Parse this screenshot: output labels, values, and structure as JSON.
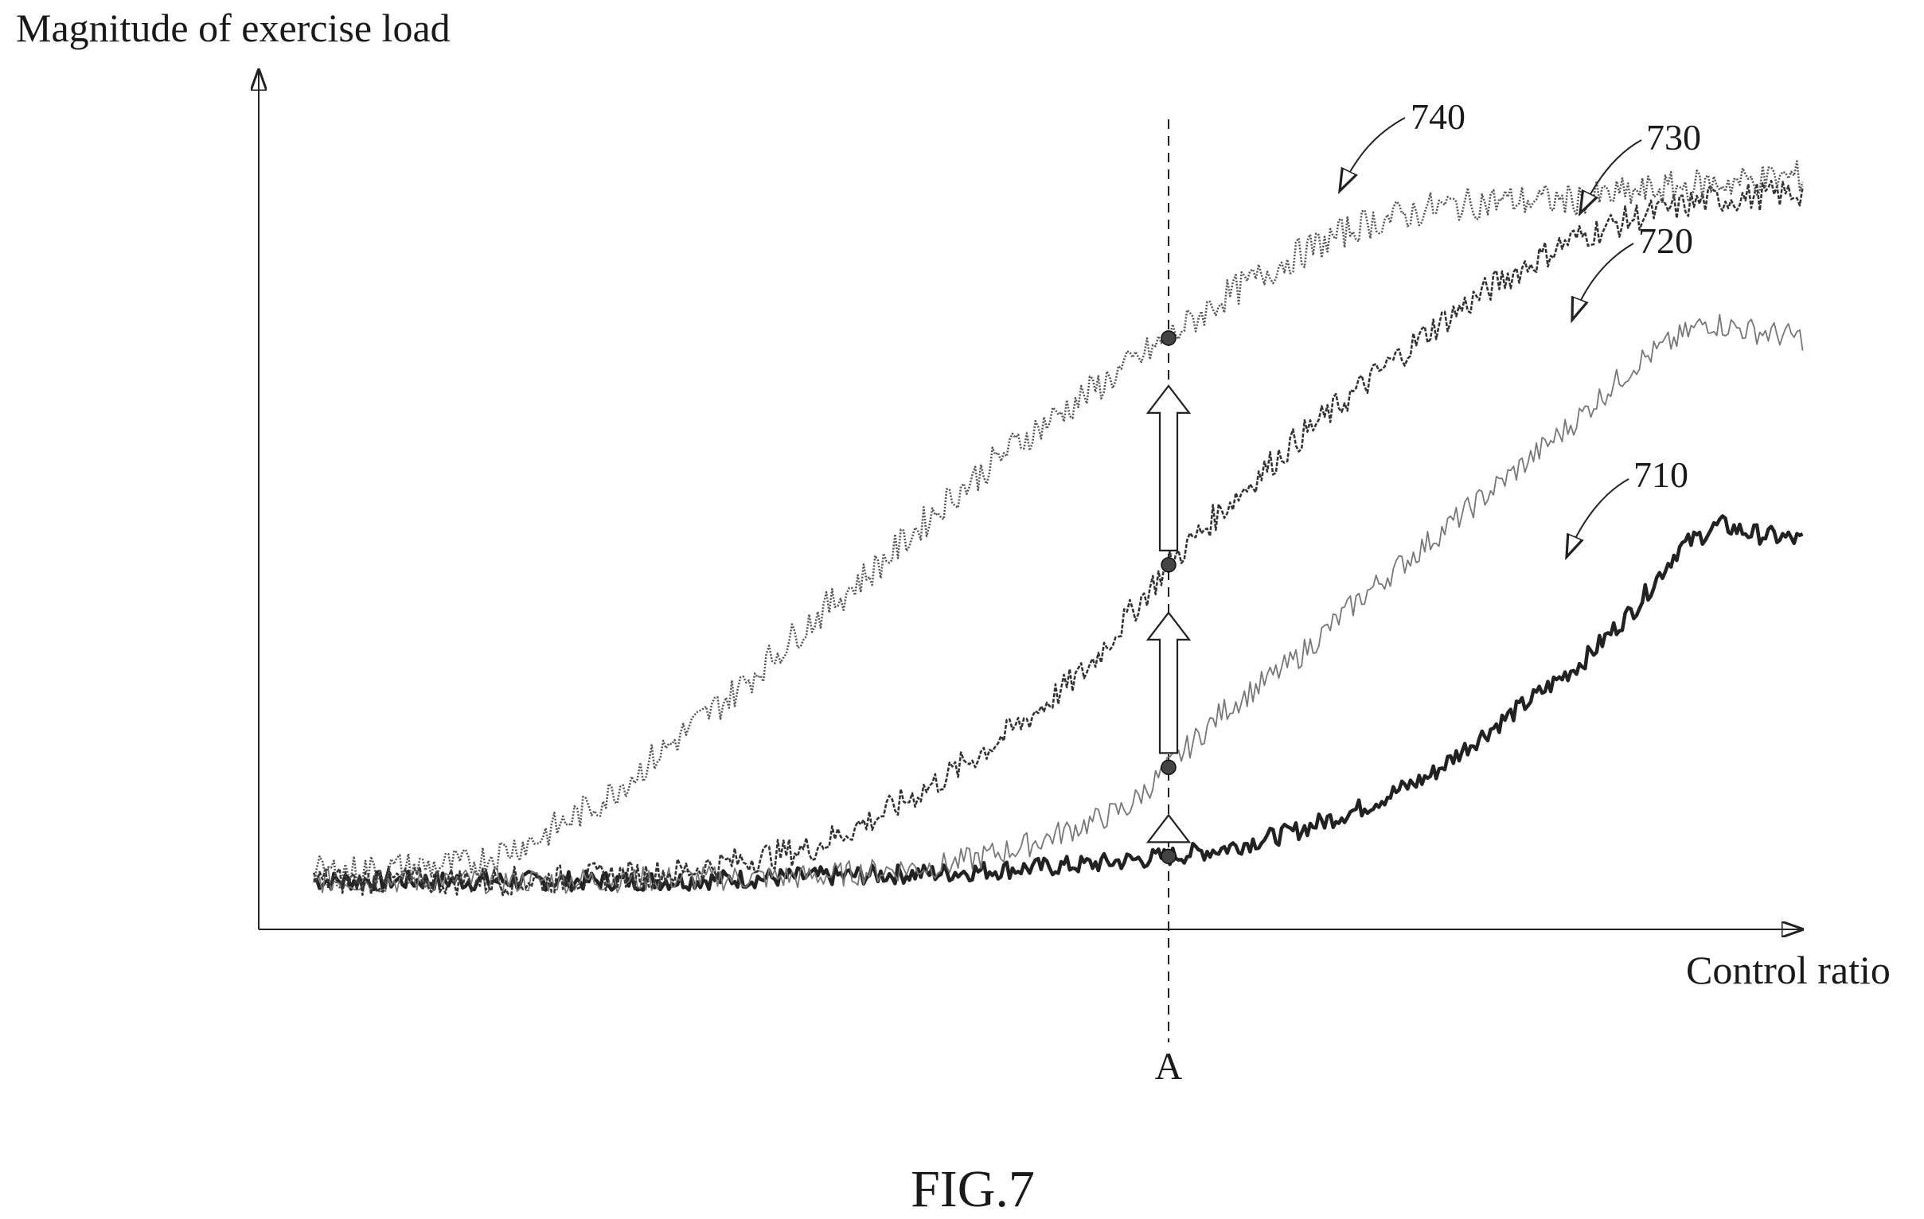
{
  "chart_data": {
    "type": "line",
    "xlabel": "Control ratio",
    "ylabel": "Magnitude of exercise load",
    "marker_label": "A",
    "marker_x": 0.66,
    "xlim": [
      0,
      1.1
    ],
    "ylim": [
      0,
      1.0
    ],
    "grid": false,
    "legend": "none",
    "series": [
      {
        "ref": "710",
        "style": "solid-thick",
        "color": "#222222",
        "x": [
          0.04,
          0.1,
          0.2,
          0.3,
          0.4,
          0.5,
          0.55,
          0.6,
          0.66,
          0.7,
          0.75,
          0.8,
          0.85,
          0.88,
          0.92,
          0.96,
          1.0,
          1.03,
          1.06,
          1.08,
          1.12
        ],
        "y": [
          0.06,
          0.06,
          0.06,
          0.06,
          0.065,
          0.07,
          0.075,
          0.08,
          0.09,
          0.1,
          0.12,
          0.15,
          0.19,
          0.23,
          0.28,
          0.33,
          0.4,
          0.47,
          0.5,
          0.49,
          0.48
        ]
      },
      {
        "ref": "720",
        "style": "solid-thin",
        "color": "#777777",
        "x": [
          0.04,
          0.2,
          0.4,
          0.5,
          0.55,
          0.6,
          0.63,
          0.66,
          0.7,
          0.75,
          0.8,
          0.85,
          0.9,
          0.95,
          1.0,
          1.05,
          1.08,
          1.12
        ],
        "y": [
          0.06,
          0.06,
          0.065,
          0.08,
          0.1,
          0.13,
          0.15,
          0.2,
          0.27,
          0.33,
          0.41,
          0.48,
          0.55,
          0.62,
          0.7,
          0.75,
          0.74,
          0.73
        ]
      },
      {
        "ref": "730",
        "style": "dashed",
        "color": "#333333",
        "x": [
          0.04,
          0.2,
          0.3,
          0.4,
          0.45,
          0.5,
          0.55,
          0.6,
          0.66,
          0.7,
          0.75,
          0.8,
          0.85,
          0.9,
          0.95,
          1.0,
          1.05,
          1.12
        ],
        "y": [
          0.06,
          0.06,
          0.07,
          0.1,
          0.14,
          0.19,
          0.25,
          0.32,
          0.45,
          0.52,
          0.6,
          0.67,
          0.74,
          0.8,
          0.85,
          0.88,
          0.9,
          0.91
        ]
      },
      {
        "ref": "740",
        "style": "dotted",
        "color": "#555555",
        "x": [
          0.04,
          0.15,
          0.2,
          0.25,
          0.3,
          0.35,
          0.4,
          0.45,
          0.5,
          0.55,
          0.6,
          0.66,
          0.7,
          0.75,
          0.8,
          0.85,
          0.9,
          0.95,
          1.0,
          1.05,
          1.12
        ],
        "y": [
          0.07,
          0.08,
          0.11,
          0.16,
          0.23,
          0.3,
          0.38,
          0.45,
          0.53,
          0.6,
          0.66,
          0.73,
          0.78,
          0.83,
          0.87,
          0.89,
          0.9,
          0.9,
          0.91,
          0.92,
          0.93
        ]
      }
    ],
    "callouts": [
      "710",
      "720",
      "730",
      "740"
    ],
    "arrows": 3
  },
  "figure": {
    "caption": "FIG.7"
  }
}
